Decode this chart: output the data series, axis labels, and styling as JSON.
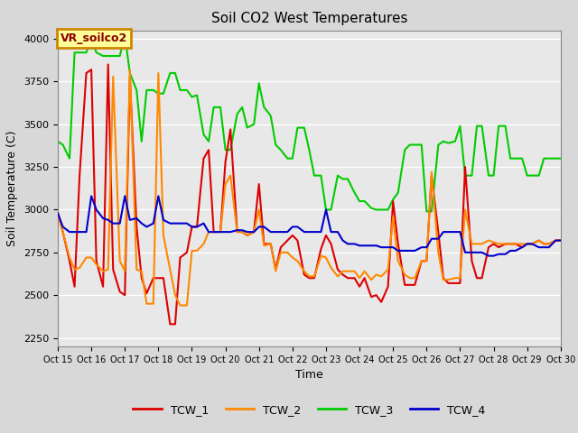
{
  "title": "Soil CO2 West Temperatures",
  "xlabel": "Time",
  "ylabel": "Soil Temperature (C)",
  "ylim": [
    2200,
    4050
  ],
  "xlim": [
    0,
    15
  ],
  "plot_bg_color": "#e8e8e8",
  "grid_color": "#ffffff",
  "annotation_text": "VR_soilco2",
  "annotation_box_color": "#ffff99",
  "annotation_edge_color": "#cc8800",
  "annotation_text_color": "#8b0000",
  "series": {
    "TCW_1": {
      "color": "#dd0000",
      "lw": 1.5
    },
    "TCW_2": {
      "color": "#ff8800",
      "lw": 1.5
    },
    "TCW_3": {
      "color": "#00cc00",
      "lw": 1.5
    },
    "TCW_4": {
      "color": "#0000cc",
      "lw": 1.5
    }
  },
  "xtick_labels": [
    "Oct 15",
    "Oct 16",
    "Oct 17",
    "Oct 18",
    "Oct 19",
    "Oct 20",
    "Oct 21",
    "Oct 22",
    "Oct 23",
    "Oct 24",
    "Oct 25",
    "Oct 26",
    "Oct 27",
    "Oct 28",
    "Oct 29",
    "Oct 30"
  ],
  "xtick_positions": [
    0,
    1,
    2,
    3,
    4,
    5,
    6,
    7,
    8,
    9,
    10,
    11,
    12,
    13,
    14,
    15
  ],
  "TCW_1_x": [
    0.0,
    0.15,
    0.35,
    0.5,
    0.65,
    0.85,
    1.0,
    1.15,
    1.35,
    1.5,
    1.65,
    1.85,
    2.0,
    2.15,
    2.35,
    2.5,
    2.65,
    2.85,
    3.0,
    3.15,
    3.35,
    3.5,
    3.65,
    3.85,
    4.0,
    4.15,
    4.35,
    4.5,
    4.65,
    4.85,
    5.0,
    5.15,
    5.35,
    5.5,
    5.65,
    5.85,
    6.0,
    6.15,
    6.35,
    6.5,
    6.65,
    6.85,
    7.0,
    7.15,
    7.35,
    7.5,
    7.65,
    7.85,
    8.0,
    8.15,
    8.35,
    8.5,
    8.65,
    8.85,
    9.0,
    9.15,
    9.35,
    9.5,
    9.65,
    9.85,
    10.0,
    10.15,
    10.35,
    10.5,
    10.65,
    10.85,
    11.0,
    11.15,
    11.35,
    11.5,
    11.65,
    11.85,
    12.0,
    12.15,
    12.35,
    12.5,
    12.65,
    12.85,
    13.0,
    13.15,
    13.35,
    13.5,
    13.65,
    13.85,
    14.0,
    14.15,
    14.35,
    14.5,
    14.65,
    14.85,
    15.0
  ],
  "TCW_1_y": [
    2980,
    2870,
    2700,
    2550,
    3200,
    3800,
    3820,
    2700,
    2550,
    3850,
    2650,
    2520,
    2500,
    3780,
    2900,
    2600,
    2510,
    2600,
    2600,
    2600,
    2330,
    2330,
    2720,
    2750,
    2900,
    2900,
    3300,
    3350,
    2870,
    2870,
    3280,
    3470,
    2870,
    2870,
    2850,
    2870,
    3150,
    2800,
    2800,
    2650,
    2780,
    2820,
    2850,
    2820,
    2620,
    2600,
    2600,
    2770,
    2850,
    2800,
    2650,
    2620,
    2600,
    2600,
    2550,
    2600,
    2490,
    2500,
    2460,
    2550,
    3050,
    2800,
    2560,
    2560,
    2560,
    2700,
    2700,
    3200,
    2870,
    2600,
    2570,
    2570,
    2570,
    3250,
    2700,
    2600,
    2600,
    2780,
    2800,
    2780,
    2800,
    2800,
    2800,
    2780,
    2800,
    2800,
    2820,
    2800,
    2800,
    2820,
    2820
  ],
  "TCW_2_x": [
    0.0,
    0.15,
    0.35,
    0.5,
    0.65,
    0.85,
    1.0,
    1.15,
    1.35,
    1.5,
    1.65,
    1.85,
    2.0,
    2.15,
    2.35,
    2.5,
    2.65,
    2.85,
    3.0,
    3.15,
    3.35,
    3.5,
    3.65,
    3.85,
    4.0,
    4.15,
    4.35,
    4.5,
    4.65,
    4.85,
    5.0,
    5.15,
    5.35,
    5.5,
    5.65,
    5.85,
    6.0,
    6.15,
    6.35,
    6.5,
    6.65,
    6.85,
    7.0,
    7.15,
    7.35,
    7.5,
    7.65,
    7.85,
    8.0,
    8.15,
    8.35,
    8.5,
    8.65,
    8.85,
    9.0,
    9.15,
    9.35,
    9.5,
    9.65,
    9.85,
    10.0,
    10.15,
    10.35,
    10.5,
    10.65,
    10.85,
    11.0,
    11.15,
    11.35,
    11.5,
    11.65,
    11.85,
    12.0,
    12.15,
    12.35,
    12.5,
    12.65,
    12.85,
    13.0,
    13.15,
    13.35,
    13.5,
    13.65,
    13.85,
    14.0,
    14.15,
    14.35,
    14.5,
    14.65,
    14.85,
    15.0
  ],
  "TCW_2_y": [
    2980,
    2870,
    2720,
    2650,
    2660,
    2720,
    2720,
    2680,
    2640,
    2650,
    3780,
    2700,
    2640,
    3820,
    2650,
    2640,
    2450,
    2450,
    3800,
    2850,
    2650,
    2500,
    2440,
    2440,
    2760,
    2760,
    2800,
    2870,
    2870,
    2870,
    3150,
    3200,
    2870,
    2870,
    2850,
    2870,
    3000,
    2790,
    2800,
    2640,
    2750,
    2750,
    2720,
    2700,
    2640,
    2610,
    2610,
    2730,
    2720,
    2660,
    2610,
    2640,
    2640,
    2640,
    2600,
    2640,
    2590,
    2620,
    2610,
    2650,
    2960,
    2700,
    2620,
    2600,
    2600,
    2700,
    2700,
    3220,
    2750,
    2590,
    2590,
    2600,
    2600,
    3000,
    2800,
    2800,
    2800,
    2820,
    2810,
    2800,
    2800,
    2800,
    2800,
    2800,
    2800,
    2800,
    2820,
    2800,
    2800,
    2820,
    2820
  ],
  "TCW_3_x": [
    0.0,
    0.15,
    0.35,
    0.5,
    0.65,
    0.85,
    1.0,
    1.15,
    1.35,
    1.5,
    1.65,
    1.85,
    2.0,
    2.15,
    2.35,
    2.5,
    2.65,
    2.85,
    3.0,
    3.15,
    3.35,
    3.5,
    3.65,
    3.85,
    4.0,
    4.15,
    4.35,
    4.5,
    4.65,
    4.85,
    5.0,
    5.15,
    5.35,
    5.5,
    5.65,
    5.85,
    6.0,
    6.15,
    6.35,
    6.5,
    6.65,
    6.85,
    7.0,
    7.15,
    7.35,
    7.5,
    7.65,
    7.85,
    8.0,
    8.15,
    8.35,
    8.5,
    8.65,
    8.85,
    9.0,
    9.15,
    9.35,
    9.5,
    9.65,
    9.85,
    10.0,
    10.15,
    10.35,
    10.5,
    10.65,
    10.85,
    11.0,
    11.15,
    11.35,
    11.5,
    11.65,
    11.85,
    12.0,
    12.15,
    12.35,
    12.5,
    12.65,
    12.85,
    13.0,
    13.15,
    13.35,
    13.5,
    13.65,
    13.85,
    14.0,
    14.15,
    14.35,
    14.5,
    14.65,
    14.85,
    15.0
  ],
  "TCW_3_y": [
    3400,
    3380,
    3300,
    3920,
    3920,
    3920,
    4000,
    3920,
    3900,
    3900,
    3900,
    3900,
    4020,
    3800,
    3700,
    3400,
    3700,
    3700,
    3680,
    3680,
    3800,
    3800,
    3700,
    3700,
    3660,
    3670,
    3440,
    3400,
    3600,
    3600,
    3350,
    3350,
    3560,
    3600,
    3480,
    3500,
    3740,
    3600,
    3550,
    3380,
    3350,
    3300,
    3300,
    3480,
    3480,
    3350,
    3200,
    3200,
    3000,
    3000,
    3200,
    3180,
    3180,
    3100,
    3050,
    3050,
    3010,
    3000,
    3000,
    3000,
    3060,
    3100,
    3350,
    3380,
    3380,
    3380,
    2990,
    2990,
    3380,
    3400,
    3390,
    3400,
    3490,
    3200,
    3200,
    3490,
    3490,
    3200,
    3200,
    3490,
    3490,
    3300,
    3300,
    3300,
    3200,
    3200,
    3200,
    3300,
    3300,
    3300,
    3300
  ],
  "TCW_4_x": [
    0.0,
    0.15,
    0.35,
    0.5,
    0.65,
    0.85,
    1.0,
    1.15,
    1.35,
    1.5,
    1.65,
    1.85,
    2.0,
    2.15,
    2.35,
    2.5,
    2.65,
    2.85,
    3.0,
    3.15,
    3.35,
    3.5,
    3.65,
    3.85,
    4.0,
    4.15,
    4.35,
    4.5,
    4.65,
    4.85,
    5.0,
    5.15,
    5.35,
    5.5,
    5.65,
    5.85,
    6.0,
    6.15,
    6.35,
    6.5,
    6.65,
    6.85,
    7.0,
    7.15,
    7.35,
    7.5,
    7.65,
    7.85,
    8.0,
    8.15,
    8.35,
    8.5,
    8.65,
    8.85,
    9.0,
    9.15,
    9.35,
    9.5,
    9.65,
    9.85,
    10.0,
    10.15,
    10.35,
    10.5,
    10.65,
    10.85,
    11.0,
    11.15,
    11.35,
    11.5,
    11.65,
    11.85,
    12.0,
    12.15,
    12.35,
    12.5,
    12.65,
    12.85,
    13.0,
    13.15,
    13.35,
    13.5,
    13.65,
    13.85,
    14.0,
    14.15,
    14.35,
    14.5,
    14.65,
    14.85,
    15.0
  ],
  "TCW_4_y": [
    2980,
    2900,
    2870,
    2870,
    2870,
    2870,
    3080,
    3000,
    2950,
    2940,
    2920,
    2920,
    3080,
    2940,
    2950,
    2920,
    2900,
    2920,
    3080,
    2940,
    2920,
    2920,
    2920,
    2920,
    2900,
    2900,
    2920,
    2870,
    2870,
    2870,
    2870,
    2870,
    2880,
    2880,
    2870,
    2870,
    2900,
    2900,
    2870,
    2870,
    2870,
    2870,
    2900,
    2900,
    2870,
    2870,
    2870,
    2870,
    3000,
    2870,
    2870,
    2820,
    2800,
    2800,
    2790,
    2790,
    2790,
    2790,
    2780,
    2780,
    2780,
    2760,
    2760,
    2760,
    2760,
    2780,
    2780,
    2830,
    2830,
    2870,
    2870,
    2870,
    2870,
    2750,
    2750,
    2750,
    2750,
    2730,
    2730,
    2740,
    2740,
    2760,
    2760,
    2780,
    2800,
    2800,
    2780,
    2780,
    2780,
    2820,
    2820
  ]
}
